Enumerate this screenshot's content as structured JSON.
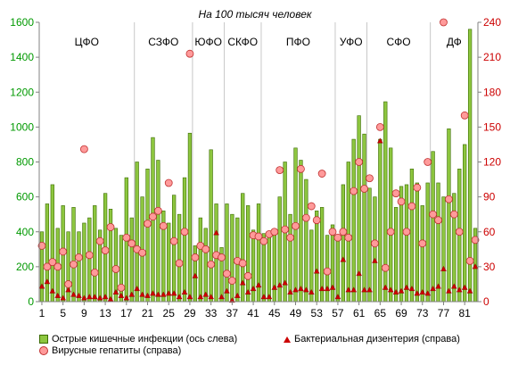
{
  "chart_data": {
    "type": "bar",
    "title": "На 100 тысяч человек",
    "left_axis": {
      "range": [
        0,
        1600
      ],
      "ticks": [
        "0",
        "200",
        "400",
        "600",
        "800",
        "1000",
        "1200",
        "1400",
        "1600"
      ],
      "color": "#009900"
    },
    "right_axis": {
      "range": [
        0,
        240
      ],
      "ticks": [
        "0",
        "30",
        "60",
        "90",
        "120",
        "150",
        "180",
        "210",
        "240"
      ],
      "color": "#cc0000"
    },
    "x_ticks": [
      "1",
      "5",
      "9",
      "13",
      "17",
      "21",
      "25",
      "29",
      "33",
      "37",
      "41",
      "45",
      "49",
      "53",
      "57",
      "61",
      "65",
      "69",
      "73",
      "77",
      "81"
    ],
    "districts": [
      "ЦФО",
      "СЗФО",
      "ЮФО",
      "СКФО",
      "ПФО",
      "УФО",
      "СФО",
      "ДФ"
    ],
    "district_bounds": [
      0.5,
      18.5,
      29.5,
      35.5,
      42.5,
      56.5,
      62.5,
      74.5,
      83.5
    ],
    "series": [
      {
        "name": "Острые кишечные инфекции (ось слева)",
        "axis": "left",
        "color": "#8dc63f",
        "values": [
          400,
          560,
          670,
          420,
          550,
          400,
          540,
          400,
          450,
          480,
          550,
          410,
          620,
          530,
          420,
          380,
          710,
          480,
          800,
          600,
          760,
          940,
          810,
          520,
          450,
          610,
          500,
          710,
          965,
          320,
          480,
          420,
          870,
          560,
          310,
          560,
          500,
          480,
          620,
          550,
          410,
          560,
          390,
          380,
          390,
          600,
          800,
          500,
          880,
          810,
          700,
          410,
          520,
          540,
          380,
          440,
          380,
          670,
          800,
          930,
          1065,
          960,
          650,
          600,
          930,
          1145,
          880,
          540,
          660,
          670,
          760,
          680,
          550,
          680,
          860,
          680,
          600,
          990,
          620,
          760,
          900,
          1560,
          420
        ]
      },
      {
        "name": "Бактериальная дизентерия (справа)",
        "axis": "right",
        "color": "#cc0000",
        "values": [
          13,
          17,
          9,
          5,
          3,
          10,
          6,
          5,
          3,
          4,
          4,
          3,
          4,
          2,
          8,
          5,
          3,
          6,
          11,
          6,
          5,
          7,
          6,
          6,
          7,
          7,
          4,
          8,
          4,
          22,
          4,
          6,
          4,
          59,
          4,
          9,
          1,
          5,
          16,
          8,
          11,
          14,
          4,
          4,
          12,
          14,
          16,
          8,
          10,
          11,
          10,
          8,
          26,
          11,
          11,
          12,
          4,
          36,
          10,
          10,
          24,
          10,
          10,
          35,
          138,
          12,
          10,
          8,
          9,
          12,
          11,
          7,
          8,
          7,
          11,
          13,
          28,
          9,
          13,
          10,
          12,
          9,
          30
        ]
      },
      {
        "name": "Вирусные гепатиты (справа)",
        "axis": "right",
        "color": "#ff9a9a",
        "values": [
          48,
          30,
          34,
          30,
          43,
          15,
          32,
          38,
          131,
          40,
          25,
          52,
          44,
          64,
          28,
          12,
          55,
          50,
          45,
          42,
          67,
          73,
          78,
          65,
          102,
          52,
          33,
          60,
          213,
          38,
          48,
          45,
          32,
          40,
          38,
          24,
          18,
          35,
          33,
          22,
          57,
          56,
          52,
          58,
          60,
          113,
          62,
          55,
          65,
          114,
          72,
          82,
          70,
          110,
          26,
          60,
          55,
          60,
          55,
          95,
          120,
          97,
          106,
          50,
          150,
          29,
          60,
          93,
          86,
          60,
          82,
          98,
          50,
          120,
          75,
          70,
          240,
          88,
          75,
          60,
          160,
          35,
          53
        ]
      }
    ]
  }
}
